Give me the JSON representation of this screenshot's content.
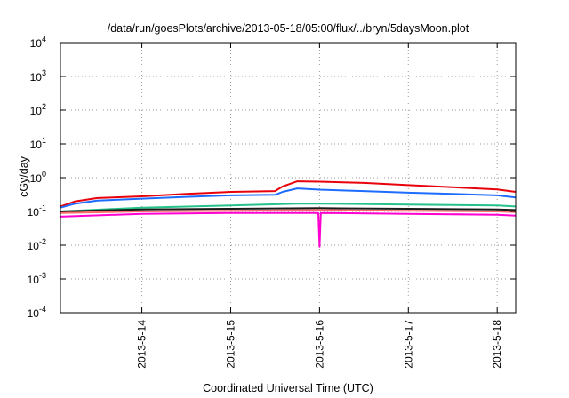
{
  "chart_data": {
    "type": "line",
    "title": "/data/run/goesPlots/archive/2013-05-18/05:00/flux/../bryn/5daysMoon.plot",
    "xlabel": "Coordinated Universal Time (UTC)",
    "ylabel": "cGy/day",
    "yscale": "log",
    "ylim": [
      0.0001,
      10000
    ],
    "x_start": "2013-05-13 02:00",
    "x_end": "2013-05-18 05:00",
    "xticks": [
      "2013-5-14",
      "2013-5-15",
      "2013-5-16",
      "2013-5-17",
      "2013-5-18"
    ],
    "yticks": [
      {
        "value": 0.0001,
        "base": "10",
        "exp": "-4"
      },
      {
        "value": 0.001,
        "base": "10",
        "exp": "-3"
      },
      {
        "value": 0.01,
        "base": "10",
        "exp": "-2"
      },
      {
        "value": 0.1,
        "base": "10",
        "exp": "-1"
      },
      {
        "value": 1,
        "base": "10",
        "exp": "0"
      },
      {
        "value": 10,
        "base": "10",
        "exp": "1"
      },
      {
        "value": 100,
        "base": "10",
        "exp": "2"
      },
      {
        "value": 1000,
        "base": "10",
        "exp": "3"
      },
      {
        "value": 10000,
        "base": "10",
        "exp": "4"
      }
    ],
    "grid": true,
    "series": [
      {
        "color": "#e8000b",
        "values": [
          [
            "2013-05-13 02:00",
            0.14
          ],
          [
            "2013-05-13 06:00",
            0.2
          ],
          [
            "2013-05-13 12:00",
            0.25
          ],
          [
            "2013-05-14 00:00",
            0.28
          ],
          [
            "2013-05-14 12:00",
            0.33
          ],
          [
            "2013-05-15 00:00",
            0.38
          ],
          [
            "2013-05-15 12:00",
            0.4
          ],
          [
            "2013-05-15 14:00",
            0.55
          ],
          [
            "2013-05-15 18:00",
            0.78
          ],
          [
            "2013-05-16 00:00",
            0.76
          ],
          [
            "2013-05-16 12:00",
            0.7
          ],
          [
            "2013-05-17 00:00",
            0.6
          ],
          [
            "2013-05-17 12:00",
            0.52
          ],
          [
            "2013-05-18 00:00",
            0.45
          ],
          [
            "2013-05-18 05:00",
            0.38
          ]
        ]
      },
      {
        "color": "#1e6cff",
        "values": [
          [
            "2013-05-13 02:00",
            0.13
          ],
          [
            "2013-05-13 06:00",
            0.17
          ],
          [
            "2013-05-13 12:00",
            0.21
          ],
          [
            "2013-05-14 00:00",
            0.24
          ],
          [
            "2013-05-14 12:00",
            0.27
          ],
          [
            "2013-05-15 00:00",
            0.3
          ],
          [
            "2013-05-15 12:00",
            0.31
          ],
          [
            "2013-05-15 14:00",
            0.38
          ],
          [
            "2013-05-15 18:00",
            0.48
          ],
          [
            "2013-05-16 00:00",
            0.44
          ],
          [
            "2013-05-16 12:00",
            0.4
          ],
          [
            "2013-05-17 00:00",
            0.36
          ],
          [
            "2013-05-17 12:00",
            0.33
          ],
          [
            "2013-05-18 00:00",
            0.3
          ],
          [
            "2013-05-18 05:00",
            0.26
          ]
        ]
      },
      {
        "color": "#26c28a",
        "values": [
          [
            "2013-05-13 02:00",
            0.1
          ],
          [
            "2013-05-14 00:00",
            0.13
          ],
          [
            "2013-05-15 00:00",
            0.15
          ],
          [
            "2013-05-15 18:00",
            0.17
          ],
          [
            "2013-05-16 00:00",
            0.17
          ],
          [
            "2013-05-17 00:00",
            0.16
          ],
          [
            "2013-05-18 00:00",
            0.15
          ],
          [
            "2013-05-18 05:00",
            0.14
          ]
        ]
      },
      {
        "color": "#1a1a1a",
        "values": [
          [
            "2013-05-13 02:00",
            0.1
          ],
          [
            "2013-05-14 00:00",
            0.115
          ],
          [
            "2013-05-15 00:00",
            0.12
          ],
          [
            "2013-05-16 00:00",
            0.125
          ],
          [
            "2013-05-17 00:00",
            0.12
          ],
          [
            "2013-05-18 00:00",
            0.115
          ],
          [
            "2013-05-18 05:00",
            0.11
          ]
        ]
      },
      {
        "color": "#ff6a6a",
        "values": [
          [
            "2013-05-13 02:00",
            0.09
          ],
          [
            "2013-05-14 00:00",
            0.1
          ],
          [
            "2013-05-15 00:00",
            0.105
          ],
          [
            "2013-05-16 00:00",
            0.11
          ],
          [
            "2013-05-17 00:00",
            0.105
          ],
          [
            "2013-05-18 00:00",
            0.1
          ],
          [
            "2013-05-18 05:00",
            0.095
          ]
        ]
      },
      {
        "color": "#ff00d0",
        "values": [
          [
            "2013-05-13 02:00",
            0.07
          ],
          [
            "2013-05-14 00:00",
            0.085
          ],
          [
            "2013-05-15 00:00",
            0.09
          ],
          [
            "2013-05-15 23:40",
            0.09
          ],
          [
            "2013-05-16 00:00",
            0.009
          ],
          [
            "2013-05-16 00:20",
            0.09
          ],
          [
            "2013-05-17 00:00",
            0.085
          ],
          [
            "2013-05-18 00:00",
            0.08
          ],
          [
            "2013-05-18 05:00",
            0.075
          ]
        ]
      }
    ]
  }
}
